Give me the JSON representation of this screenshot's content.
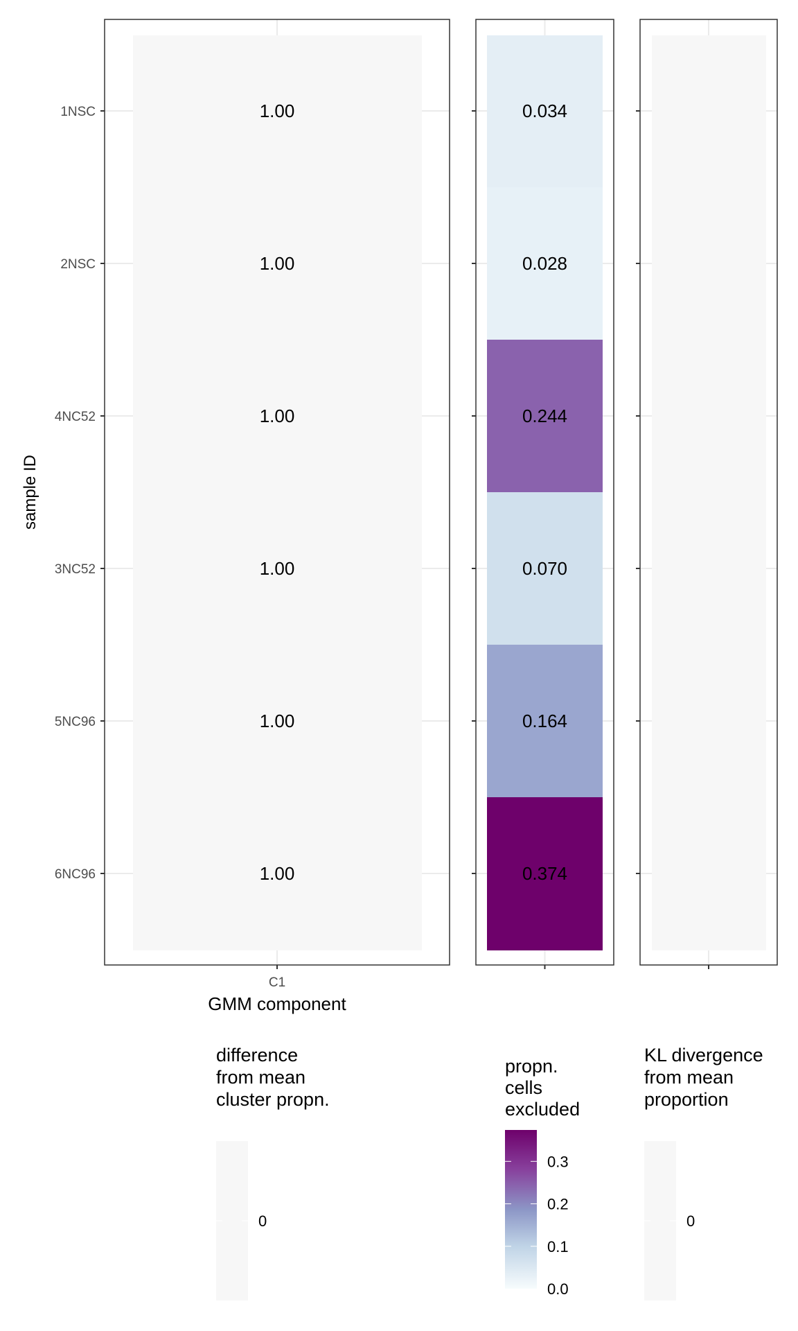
{
  "chart_data": [
    {
      "type": "heatmap",
      "title": "",
      "xlabel": "GMM component",
      "ylabel": "sample ID",
      "x_categories": [
        "C1"
      ],
      "y_categories": [
        "1NSC",
        "2NSC",
        "4NC52",
        "3NC52",
        "5NC96",
        "6NC96"
      ],
      "values": [
        1.0,
        1.0,
        1.0,
        1.0,
        1.0,
        1.0
      ],
      "labels": [
        "1.00",
        "1.00",
        "1.00",
        "1.00",
        "1.00",
        "1.00"
      ],
      "fill_value": 0,
      "legend": {
        "title": [
          "difference",
          "from mean",
          "cluster propn."
        ],
        "ticks": [
          "0"
        ],
        "placement": "bottom"
      }
    },
    {
      "type": "heatmap",
      "title": "",
      "y_categories": [
        "1NSC",
        "2NSC",
        "4NC52",
        "3NC52",
        "5NC96",
        "6NC96"
      ],
      "values": [
        0.034,
        0.028,
        0.244,
        0.07,
        0.164,
        0.374
      ],
      "labels": [
        "0.034",
        "0.028",
        "0.244",
        "0.070",
        "0.164",
        "0.374"
      ],
      "legend": {
        "title": [
          "propn.",
          "cells",
          "excluded"
        ],
        "ticks": [
          "0.0",
          "0.1",
          "0.2",
          "0.3"
        ],
        "tick_values": [
          0,
          0.1,
          0.2,
          0.3
        ],
        "range": [
          0,
          0.374
        ],
        "placement": "bottom"
      }
    },
    {
      "type": "heatmap",
      "title": "",
      "y_categories": [
        "1NSC",
        "2NSC",
        "4NC52",
        "3NC52",
        "5NC96",
        "6NC96"
      ],
      "values": [
        0,
        0,
        0,
        0,
        0,
        0
      ],
      "legend": {
        "title": [
          "KL divergence",
          "from mean",
          "proportion"
        ],
        "ticks": [
          "0"
        ],
        "placement": "bottom"
      }
    }
  ],
  "colors": {
    "neutral": "#f7f7f7",
    "low": "#f7fcfd",
    "mid": "#8c96c6",
    "high": "#6e016b",
    "grid": "#ebebeb",
    "border": "#333333"
  }
}
